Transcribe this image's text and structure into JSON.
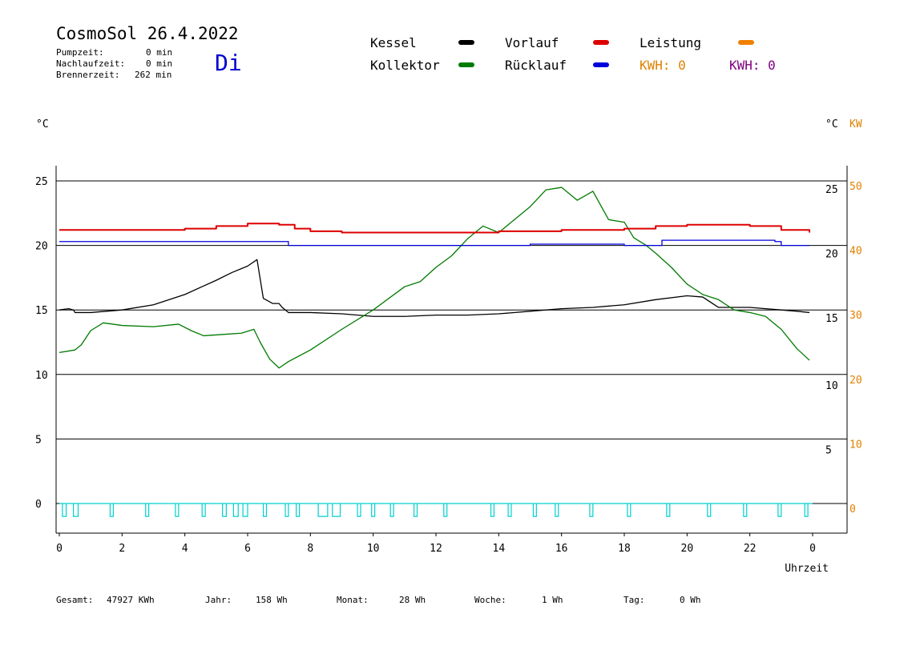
{
  "header": {
    "title": "CosmoSol 26.4.2022",
    "pumpzeit_label": "Pumpzeit:",
    "pumpzeit_value": "0 min",
    "nachlaufzeit_label": "Nachlaufzeit:",
    "nachlaufzeit_value": "0 min",
    "brennerzeit_label": "Brennerzeit:",
    "brennerzeit_value": "262 min",
    "weekday": "Di"
  },
  "legend": {
    "kessel": "Kessel",
    "kollektor": "Kollektor",
    "vorlauf": "Vorlauf",
    "ruecklauf": "Rücklauf",
    "leistung": "Leistung",
    "kwh_orange": "KWH: 0",
    "kwh_purple": "KWH: 0"
  },
  "axis_units": {
    "left": "°C",
    "right_c": "°C",
    "right_kw": "KW"
  },
  "footer": {
    "gesamt_label": "Gesamt:",
    "gesamt_value": "47927 KWh",
    "jahr_label": "Jahr:",
    "jahr_value": "158 Wh",
    "monat_label": "Monat:",
    "monat_value": "28 Wh",
    "woche_label": "Woche:",
    "woche_value": "1 Wh",
    "tag_label": "Tag:",
    "tag_value": "0 Wh"
  },
  "colors": {
    "kessel": "#000000",
    "kollektor": "#007a00",
    "vorlauf": "#dd0000",
    "ruecklauf": "#0000dd",
    "leistung": "#f08000",
    "pumpe": "#00d0d0",
    "kw_axis": "#e08000"
  },
  "chart_data": {
    "type": "line",
    "xlabel": "Uhrzeit",
    "x_ticks": [
      "0",
      "2",
      "4",
      "6",
      "8",
      "10",
      "12",
      "14",
      "16",
      "18",
      "20",
      "22",
      "0"
    ],
    "xlim": [
      0,
      24
    ],
    "ylim": [
      -1.5,
      26.5
    ],
    "y_ticks_left": [
      0,
      5,
      10,
      15,
      20,
      25
    ],
    "y_ticks_right_c": [
      0,
      5,
      10,
      15,
      20,
      25
    ],
    "y_ticks_right_kw": [
      0,
      10,
      20,
      30,
      40,
      50
    ],
    "grid": "horizontal",
    "series": [
      {
        "name": "Kessel",
        "color": "#000000",
        "x": [
          0,
          0.3,
          0.45,
          0.5,
          1.0,
          2.0,
          3.0,
          4.0,
          5.0,
          5.5,
          6.0,
          6.3,
          6.5,
          6.8,
          7.0,
          7.1,
          7.3,
          8.0,
          9.0,
          10.0,
          11.0,
          12.0,
          13.0,
          14.0,
          15.0,
          16.0,
          17.0,
          18.0,
          19.0,
          20.0,
          20.5,
          21.0,
          22.0,
          22.5,
          23.0,
          23.5,
          23.9
        ],
        "y": [
          15.0,
          15.1,
          15.0,
          14.8,
          14.8,
          15.0,
          15.4,
          16.2,
          17.3,
          17.9,
          18.4,
          18.9,
          15.9,
          15.5,
          15.5,
          15.2,
          14.8,
          14.8,
          14.7,
          14.5,
          14.5,
          14.6,
          14.6,
          14.7,
          14.9,
          15.1,
          15.2,
          15.4,
          15.8,
          16.1,
          16.0,
          15.2,
          15.2,
          15.1,
          15.0,
          14.9,
          14.8
        ]
      },
      {
        "name": "Kollektor",
        "color": "#007a00",
        "x": [
          0,
          0.5,
          0.7,
          1.0,
          1.4,
          2.0,
          3.0,
          3.8,
          4.2,
          4.6,
          5.2,
          5.8,
          6.2,
          6.4,
          6.7,
          7.0,
          7.3,
          8.0,
          9.0,
          10.0,
          11.0,
          11.5,
          12.0,
          12.5,
          13.0,
          13.5,
          14.0,
          14.5,
          15.0,
          15.5,
          16.0,
          16.5,
          17.0,
          17.5,
          18.0,
          18.3,
          18.7,
          19.0,
          19.5,
          20.0,
          20.5,
          21.0,
          21.5,
          22.0,
          22.5,
          23.0,
          23.5,
          23.9
        ],
        "y": [
          11.7,
          11.9,
          12.3,
          13.4,
          14.0,
          13.8,
          13.7,
          13.9,
          13.4,
          13.0,
          13.1,
          13.2,
          13.5,
          12.5,
          11.2,
          10.5,
          11.0,
          11.9,
          13.5,
          15.0,
          16.8,
          17.2,
          18.3,
          19.2,
          20.5,
          21.5,
          21.0,
          22.0,
          23.0,
          24.3,
          24.5,
          23.5,
          24.2,
          22.0,
          21.8,
          20.6,
          20.0,
          19.4,
          18.3,
          17.0,
          16.2,
          15.8,
          15.0,
          14.8,
          14.5,
          13.5,
          12.0,
          11.1
        ]
      },
      {
        "name": "Vorlauf",
        "color": "#dd0000",
        "x": [
          0,
          2.0,
          4.0,
          5.0,
          6.0,
          6.5,
          7.0,
          7.5,
          8.0,
          9.0,
          12.0,
          14.0,
          16.0,
          18.0,
          19.0,
          20.0,
          21.0,
          22.0,
          23.0,
          23.9
        ],
        "y": [
          21.2,
          21.2,
          21.3,
          21.5,
          21.7,
          21.7,
          21.6,
          21.3,
          21.1,
          21.0,
          21.0,
          21.1,
          21.2,
          21.3,
          21.5,
          21.6,
          21.6,
          21.5,
          21.2,
          21.0
        ]
      },
      {
        "name": "Rücklauf",
        "color": "#0000dd",
        "x": [
          0,
          1.0,
          2.0,
          3.0,
          4.0,
          5.0,
          6.0,
          7.0,
          7.25,
          7.3,
          8.0,
          10.0,
          12.0,
          14.0,
          15.0,
          16.0,
          17.0,
          18.0,
          19.0,
          19.2,
          20.0,
          21.0,
          22.0,
          22.8,
          23.0,
          23.9
        ],
        "y": [
          20.3,
          20.3,
          20.3,
          20.3,
          20.3,
          20.3,
          20.3,
          20.3,
          20.3,
          20.0,
          20.0,
          20.0,
          20.0,
          20.0,
          20.1,
          20.1,
          20.1,
          20.0,
          20.0,
          20.4,
          20.4,
          20.4,
          20.4,
          20.3,
          20.0,
          20.0
        ]
      },
      {
        "name": "Pumpe",
        "color": "#00d0d0",
        "pulses": [
          [
            0.1,
            0.22
          ],
          [
            0.45,
            0.6
          ],
          [
            1.62,
            1.72
          ],
          [
            2.75,
            2.85
          ],
          [
            3.7,
            3.8
          ],
          [
            4.55,
            4.65
          ],
          [
            5.2,
            5.32
          ],
          [
            5.55,
            5.7
          ],
          [
            5.85,
            6.0
          ],
          [
            6.5,
            6.6
          ],
          [
            7.2,
            7.3
          ],
          [
            7.55,
            7.65
          ],
          [
            8.25,
            8.55
          ],
          [
            8.7,
            8.95
          ],
          [
            9.5,
            9.6
          ],
          [
            9.95,
            10.05
          ],
          [
            10.55,
            10.65
          ],
          [
            11.3,
            11.4
          ],
          [
            12.25,
            12.35
          ],
          [
            13.75,
            13.85
          ],
          [
            14.3,
            14.4
          ],
          [
            15.1,
            15.2
          ],
          [
            15.8,
            15.9
          ],
          [
            16.9,
            17.0
          ],
          [
            18.1,
            18.2
          ],
          [
            19.35,
            19.45
          ],
          [
            20.65,
            20.75
          ],
          [
            21.8,
            21.9
          ],
          [
            22.9,
            23.0
          ],
          [
            23.75,
            23.85
          ]
        ]
      }
    ]
  }
}
